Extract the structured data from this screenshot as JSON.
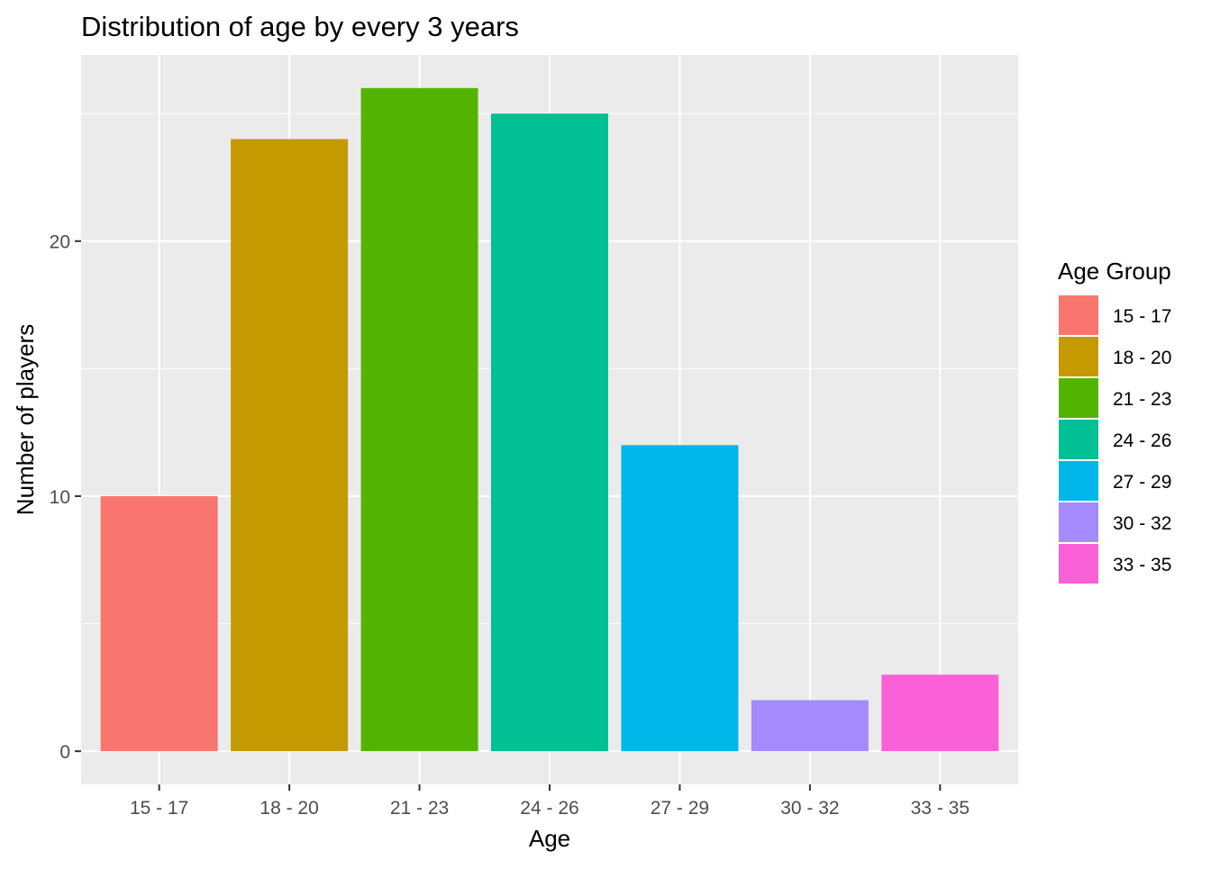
{
  "chart_data": {
    "type": "bar",
    "title": "Distribution of age by every 3 years",
    "xlabel": "Age",
    "ylabel": "Number of players",
    "categories": [
      "15 - 17",
      "18 - 20",
      "21 - 23",
      "24 - 26",
      "27 - 29",
      "30 - 32",
      "33 - 35"
    ],
    "values": [
      10,
      24,
      26,
      25,
      12,
      2,
      3
    ],
    "colors": [
      "#F8766D",
      "#C49A00",
      "#53B400",
      "#00C094",
      "#00B6EB",
      "#A58AFF",
      "#FB61D7"
    ],
    "ylim": [
      -1.3,
      27.3
    ],
    "yticks": [
      0,
      10,
      20
    ],
    "grid": true,
    "legend": {
      "title": "Age Group",
      "position": "right",
      "entries": [
        "15 - 17",
        "18 - 20",
        "21 - 23",
        "24 - 26",
        "27 - 29",
        "30 - 32",
        "33 - 35"
      ]
    },
    "panel_color": "#EBEBEB",
    "grid_color": "#FFFFFF",
    "tick_text_color": "#4D4D4D"
  }
}
